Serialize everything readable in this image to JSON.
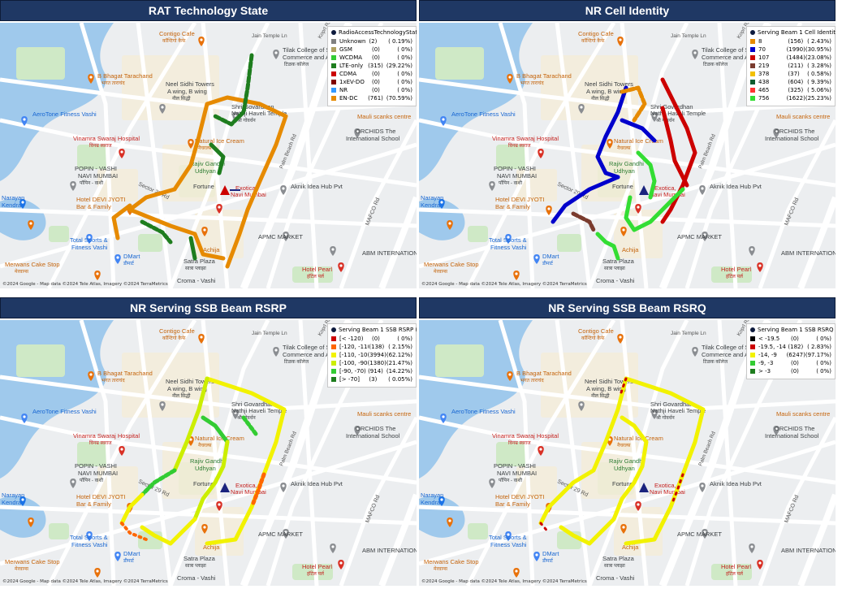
{
  "map_labels": {
    "contigo": "Contigo Cafe",
    "contigo_sub": "कॉन्टिगो कैफे",
    "jain_temple": "Jain Temple Ln",
    "bhagat": "B Bhagat Tarachand",
    "bhagat_sub": "भगत ताराचंद",
    "tilak": "Tilak College of Science",
    "tilak2": "Commerce and Arts",
    "tilak_sub": "टिळक कॉलेज",
    "neel1": "Neel Sidhi Towers",
    "neel2": "A wing, B wing",
    "neel_sub": "नील सिद्धी",
    "shri1": "Shri Govardhan",
    "shri2": "Nathji Haveli Temple",
    "shri_sub": "श्री गोवर्धन",
    "aerotone": "AeroTone Fitness Vashi",
    "mauli": "Mauli scanks centre",
    "orchids1": "ORCHIDS The",
    "orchids2": "International School",
    "vinamra": "Vinamra Swaraj Hospital",
    "vinamra_sub": "विनम्र स्वराज",
    "natural": "Natural Ice Cream",
    "natural_sub": "नैचरल्स",
    "popin1": "POPIN - VASHI",
    "popin2": "NAVI MUMBAI",
    "popin_sub": "पॉपिन - वाशी",
    "rajiv1": "Rajiv Gandhi",
    "rajiv2": "Udhyan",
    "fortune": "Fortune",
    "exotica1": "Exotica,",
    "exotica2": "Navi Mumbai",
    "aknik": "Aknik Idea Hub Pvt",
    "devi1": "Hotel DEVI JYOTI",
    "devi2": "Bar & Family",
    "narayan1": "Narayan",
    "narayan2": "Kendra",
    "sector29": "Sector 29 Rd",
    "total1": "Total Sports &",
    "total2": "Fitness Vashi",
    "apmc": "APMC MARKET",
    "abm": "ABM INTERNATIONAL",
    "mafco": "MAFCO Rd",
    "merwans": "Merwans Cake Stop",
    "merwans_sub": "मेरवान्स",
    "dmart": "DMart",
    "dmart_sub": "डीमार्ट",
    "achija": "Achija",
    "satra1": "Satra Plaza",
    "satra_sub": "सात्रा प्लाझा",
    "croma1": "Croma - Vashi",
    "croma2": "Akshar Plaza",
    "maratha": "Maratha Bhavan",
    "hotel_pearl": "Hotel Pearl",
    "hotel_pearl_sub": "हॉटेल पर्ल",
    "palm_beach": "Palm Beach Rd",
    "koprl": "Koprl Rd"
  },
  "credit": "©2024 Google - Map data ©2024 Tele Atlas, Imagery ©2024 TerraMetrics",
  "panels": [
    {
      "title": "RAT Technology State",
      "legend_title": "RadioAccessTechnologyState",
      "rows": [
        {
          "label": "Unknown",
          "count": "(2)",
          "pct": "( 0.19%)",
          "color": "#808080"
        },
        {
          "label": "GSM",
          "count": "(0)",
          "pct": "(   0%)",
          "color": "#b0a060"
        },
        {
          "label": "WCDMA",
          "count": "(0)",
          "pct": "(   0%)",
          "color": "#33cc33"
        },
        {
          "label": "LTE-only",
          "count": "(315)",
          "pct": "(29.22%)",
          "color": "#1e7d1e"
        },
        {
          "label": "CDMA",
          "count": "(0)",
          "pct": "(   0%)",
          "color": "#cc0000"
        },
        {
          "label": "1xEV-DO",
          "count": "(0)",
          "pct": "(   0%)",
          "color": "#800000"
        },
        {
          "label": "NR",
          "count": "(0)",
          "pct": "(   0%)",
          "color": "#3399ff"
        },
        {
          "label": "EN-DC",
          "count": "(761)",
          "pct": "(70.59%)",
          "color": "#e68a00"
        }
      ]
    },
    {
      "title": "NR Cell Identity",
      "legend_title": "Serving Beam 1 Cell Identity",
      "rows": [
        {
          "label": "8",
          "count": "(156)",
          "pct": "( 2.43%)",
          "color": "#e68a00"
        },
        {
          "label": "70",
          "count": "(1990)",
          "pct": "(30.95%)",
          "color": "#0000cc"
        },
        {
          "label": "107",
          "count": "(1484)",
          "pct": "(23.08%)",
          "color": "#cc0000"
        },
        {
          "label": "219",
          "count": "(211)",
          "pct": "( 3.28%)",
          "color": "#7a3b2e"
        },
        {
          "label": "378",
          "count": "(37)",
          "pct": "( 0.58%)",
          "color": "#f2c000"
        },
        {
          "label": "438",
          "count": "(604)",
          "pct": "( 9.39%)",
          "color": "#0f5c2e"
        },
        {
          "label": "465",
          "count": "(325)",
          "pct": "( 5.06%)",
          "color": "#ff3333"
        },
        {
          "label": "756",
          "count": "(1622)",
          "pct": "(25.23%)",
          "color": "#33dd33"
        }
      ]
    },
    {
      "title": "NR Serving SSB Beam RSRP",
      "legend_title": "Serving Beam 1 SSB RSRP (dBm)",
      "rows": [
        {
          "label": "[< -120)",
          "count": "(0)",
          "pct": "(   0%)",
          "color": "#cc0000"
        },
        {
          "label": "[-120, -110)",
          "count": "(138)",
          "pct": "( 2.15%)",
          "color": "#ff6600"
        },
        {
          "label": "[-110, -100)",
          "count": "(3994)",
          "pct": "(62.12%)",
          "color": "#f2f200"
        },
        {
          "label": "[-100, -90)",
          "count": "(1380)",
          "pct": "(21.47%)",
          "color": "#ccee00"
        },
        {
          "label": "[-90, -70)",
          "count": "(914)",
          "pct": "(14.22%)",
          "color": "#33cc33"
        },
        {
          "label": "[> -70]",
          "count": "(3)",
          "pct": "( 0.05%)",
          "color": "#1e7d1e"
        }
      ]
    },
    {
      "title": "NR Serving SSB Beam RSRQ",
      "legend_title": "Serving Beam 1 SSB RSRQ (dB)",
      "rows": [
        {
          "label": "< -19.5",
          "count": "(0)",
          "pct": "(   0%)",
          "color": "#000000"
        },
        {
          "label": "-19.5, -14",
          "count": "(182)",
          "pct": "( 2.83%)",
          "color": "#cc0000"
        },
        {
          "label": "-14, -9",
          "count": "(6247)",
          "pct": "(97.17%)",
          "color": "#f2f200"
        },
        {
          "label": "-9, -3",
          "count": "(0)",
          "pct": "(   0%)",
          "color": "#33cc33"
        },
        {
          "label": "> -3",
          "count": "(0)",
          "pct": "(   0%)",
          "color": "#1e7d1e"
        }
      ]
    }
  ]
}
